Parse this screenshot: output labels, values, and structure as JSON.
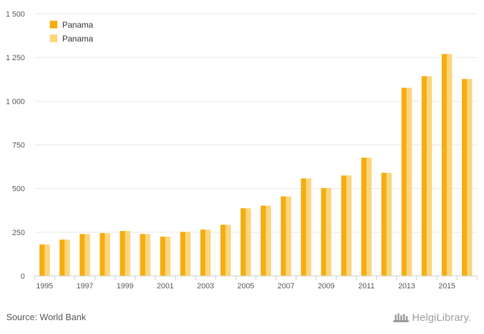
{
  "chart_data": {
    "type": "bar",
    "categories": [
      "1995",
      "1996",
      "1997",
      "1998",
      "1999",
      "2000",
      "2001",
      "2002",
      "2003",
      "2004",
      "2005",
      "2006",
      "2007",
      "2008",
      "2009",
      "2010",
      "2011",
      "2012",
      "2013",
      "2014",
      "2015",
      "2016"
    ],
    "x_tick_labels": [
      "1995",
      "1997",
      "1999",
      "2001",
      "2003",
      "2005",
      "2007",
      "2009",
      "2011",
      "2013",
      "2015"
    ],
    "series": [
      {
        "name": "Panama",
        "color": "#f5ad0f",
        "values": [
          180,
          208,
          240,
          245,
          257,
          240,
          225,
          252,
          265,
          293,
          387,
          402,
          455,
          558,
          503,
          575,
          677,
          590,
          1077,
          1143,
          1270,
          1127
        ]
      },
      {
        "name": "Panama",
        "color": "#fdd57c",
        "values": [
          180,
          208,
          240,
          245,
          257,
          240,
          225,
          252,
          265,
          293,
          387,
          402,
          455,
          558,
          503,
          575,
          677,
          590,
          1077,
          1143,
          1270,
          1127
        ]
      }
    ],
    "ylim": [
      0,
      1500
    ],
    "y_ticks": [
      0,
      250,
      500,
      750,
      1000,
      1250,
      1500
    ],
    "y_tick_labels": [
      "0",
      "250",
      "500",
      "750",
      "1 000",
      "1 250",
      "1 500"
    ],
    "grid": true,
    "legend_position": "top-left",
    "title": "",
    "xlabel": "",
    "ylabel": ""
  },
  "footer": {
    "source": "Source: World Bank",
    "logo_text": "HelgiLibrary."
  }
}
